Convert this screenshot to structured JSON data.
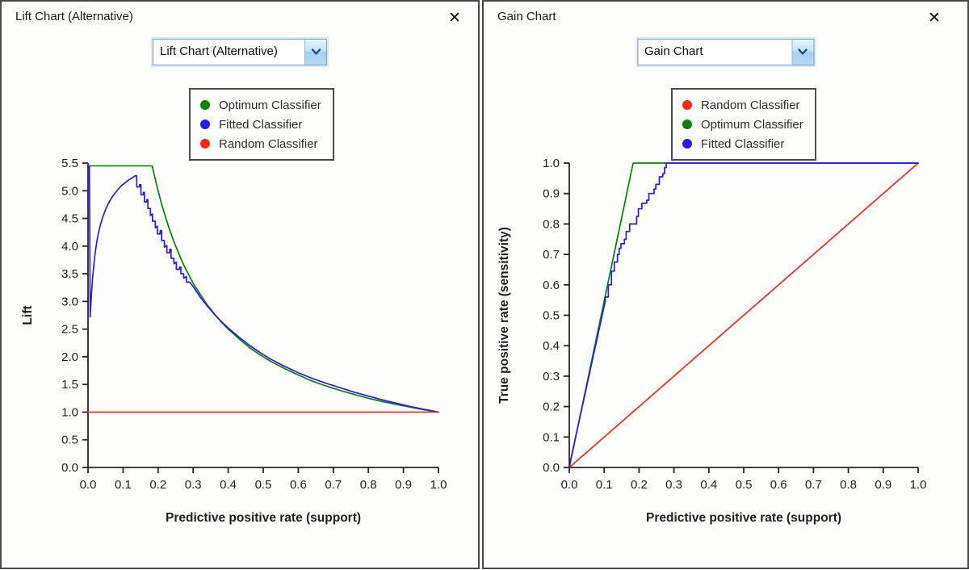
{
  "icons": {
    "close": "✕",
    "dropdown_arrow": "chevron-down"
  },
  "colors": {
    "optimum": "#038203",
    "fitted": "#2d1ae8",
    "random": "#f8271b",
    "window_border": "#4a4a4a",
    "combo_border": "#7da0c8",
    "combo_arrow": "#1e4e79"
  },
  "windows": [
    {
      "id": "lift",
      "title": "Lift Chart (Alternative)",
      "dropdown": {
        "value": "Lift Chart (Alternative)"
      },
      "legend": [
        {
          "label": "Optimum Classifier",
          "color": "#038203"
        },
        {
          "label": "Fitted Classifier",
          "color": "#2d1ae8"
        },
        {
          "label": "Random Classifier",
          "color": "#f8271b"
        }
      ]
    },
    {
      "id": "gain",
      "title": "Gain Chart",
      "dropdown": {
        "value": "Gain Chart"
      },
      "legend": [
        {
          "label": "Random Classifier",
          "color": "#f8271b"
        },
        {
          "label": "Optimum Classifier",
          "color": "#038203"
        },
        {
          "label": "Fitted Classifier",
          "color": "#2d1ae8"
        }
      ]
    }
  ],
  "chart_data": [
    {
      "type": "line",
      "title": "",
      "xlabel": "Predictive positive rate (support)",
      "ylabel": "Lift",
      "xlim": [
        0.0,
        1.0
      ],
      "ylim": [
        0.0,
        5.5
      ],
      "xticks": [
        "0.0",
        "0.1",
        "0.2",
        "0.3",
        "0.4",
        "0.5",
        "0.6",
        "0.7",
        "0.8",
        "0.9",
        "1.0"
      ],
      "yticks": [
        "0.0",
        "0.5",
        "1.0",
        "1.5",
        "2.0",
        "2.5",
        "3.0",
        "3.5",
        "4.0",
        "4.5",
        "5.0",
        "5.5"
      ],
      "grid": false,
      "legend_position": "top",
      "series": [
        {
          "name": "Optimum Classifier",
          "color": "#038203",
          "points": [
            [
              0.004,
              5.45
            ],
            [
              0.183,
              5.45
            ],
            [
              0.19,
              5.26
            ],
            [
              0.2,
              5.0
            ],
            [
              0.21,
              4.76
            ],
            [
              0.22,
              4.55
            ],
            [
              0.23,
              4.35
            ],
            [
              0.24,
              4.17
            ],
            [
              0.25,
              4.0
            ],
            [
              0.26,
              3.85
            ],
            [
              0.27,
              3.7
            ],
            [
              0.28,
              3.57
            ],
            [
              0.29,
              3.45
            ],
            [
              0.3,
              3.33
            ],
            [
              0.32,
              3.13
            ],
            [
              0.34,
              2.94
            ],
            [
              0.36,
              2.78
            ],
            [
              0.38,
              2.63
            ],
            [
              0.4,
              2.5
            ],
            [
              0.43,
              2.33
            ],
            [
              0.46,
              2.17
            ],
            [
              0.49,
              2.04
            ],
            [
              0.52,
              1.92
            ],
            [
              0.56,
              1.79
            ],
            [
              0.6,
              1.67
            ],
            [
              0.64,
              1.56
            ],
            [
              0.68,
              1.47
            ],
            [
              0.72,
              1.39
            ],
            [
              0.76,
              1.32
            ],
            [
              0.8,
              1.25
            ],
            [
              0.84,
              1.19
            ],
            [
              0.88,
              1.14
            ],
            [
              0.92,
              1.09
            ],
            [
              0.96,
              1.04
            ],
            [
              1.0,
              1.0
            ]
          ]
        },
        {
          "name": "Fitted Classifier",
          "color": "#2d1ae8",
          "points": [
            [
              0.004,
              5.45
            ],
            [
              0.0055,
              3.6
            ],
            [
              0.006,
              2.72
            ],
            [
              0.008,
              2.95
            ],
            [
              0.01,
              3.15
            ],
            [
              0.013,
              3.42
            ],
            [
              0.016,
              3.62
            ],
            [
              0.02,
              3.86
            ],
            [
              0.025,
              4.08
            ],
            [
              0.03,
              4.24
            ],
            [
              0.036,
              4.4
            ],
            [
              0.042,
              4.52
            ],
            [
              0.05,
              4.66
            ],
            [
              0.058,
              4.77
            ],
            [
              0.066,
              4.86
            ],
            [
              0.075,
              4.94
            ],
            [
              0.085,
              5.02
            ],
            [
              0.095,
              5.09
            ],
            [
              0.105,
              5.14
            ],
            [
              0.115,
              5.19
            ],
            [
              0.125,
              5.23
            ],
            [
              0.135,
              5.27
            ],
            [
              0.139,
              5.27
            ],
            [
              0.139,
              5.07
            ],
            [
              0.147,
              5.07
            ],
            [
              0.147,
              5.11
            ],
            [
              0.151,
              5.11
            ],
            [
              0.151,
              4.93
            ],
            [
              0.158,
              4.93
            ],
            [
              0.158,
              4.97
            ],
            [
              0.161,
              4.97
            ],
            [
              0.161,
              4.8
            ],
            [
              0.168,
              4.8
            ],
            [
              0.168,
              4.84
            ],
            [
              0.171,
              4.84
            ],
            [
              0.171,
              4.68
            ],
            [
              0.178,
              4.68
            ],
            [
              0.178,
              4.55
            ],
            [
              0.184,
              4.58
            ],
            [
              0.184,
              4.45
            ],
            [
              0.192,
              4.45
            ],
            [
              0.192,
              4.33
            ],
            [
              0.198,
              4.36
            ],
            [
              0.198,
              4.22
            ],
            [
              0.206,
              4.22
            ],
            [
              0.206,
              4.28
            ],
            [
              0.21,
              4.28
            ],
            [
              0.21,
              4.1
            ],
            [
              0.218,
              4.1
            ],
            [
              0.218,
              3.98
            ],
            [
              0.225,
              4.01
            ],
            [
              0.225,
              3.88
            ],
            [
              0.233,
              3.88
            ],
            [
              0.233,
              3.94
            ],
            [
              0.237,
              3.94
            ],
            [
              0.237,
              3.78
            ],
            [
              0.245,
              3.78
            ],
            [
              0.245,
              3.68
            ],
            [
              0.252,
              3.71
            ],
            [
              0.252,
              3.58
            ],
            [
              0.261,
              3.58
            ],
            [
              0.261,
              3.62
            ],
            [
              0.265,
              3.62
            ],
            [
              0.265,
              3.5
            ],
            [
              0.273,
              3.5
            ],
            [
              0.273,
              3.42
            ],
            [
              0.281,
              3.45
            ],
            [
              0.281,
              3.35
            ],
            [
              0.29,
              3.35
            ],
            [
              0.3,
              3.27
            ],
            [
              0.32,
              3.08
            ],
            [
              0.34,
              2.92
            ],
            [
              0.36,
              2.77
            ],
            [
              0.38,
              2.64
            ],
            [
              0.4,
              2.52
            ],
            [
              0.43,
              2.36
            ],
            [
              0.46,
              2.21
            ],
            [
              0.49,
              2.08
            ],
            [
              0.52,
              1.96
            ],
            [
              0.56,
              1.83
            ],
            [
              0.6,
              1.71
            ],
            [
              0.64,
              1.61
            ],
            [
              0.68,
              1.52
            ],
            [
              0.72,
              1.44
            ],
            [
              0.76,
              1.36
            ],
            [
              0.8,
              1.29
            ],
            [
              0.84,
              1.22
            ],
            [
              0.88,
              1.16
            ],
            [
              0.92,
              1.1
            ],
            [
              0.96,
              1.05
            ],
            [
              1.0,
              1.0
            ]
          ]
        },
        {
          "name": "Random Classifier",
          "color": "#f8271b",
          "points": [
            [
              0.0,
              1.0
            ],
            [
              1.0,
              1.0
            ]
          ]
        }
      ]
    },
    {
      "type": "line",
      "title": "",
      "xlabel": "Predictive positive rate (support)",
      "ylabel": "True positive rate (sensitivity)",
      "xlim": [
        0.0,
        1.0
      ],
      "ylim": [
        0.0,
        1.0
      ],
      "xticks": [
        "0.0",
        "0.1",
        "0.2",
        "0.3",
        "0.4",
        "0.5",
        "0.6",
        "0.7",
        "0.8",
        "0.9",
        "1.0"
      ],
      "yticks": [
        "0.0",
        "0.1",
        "0.2",
        "0.3",
        "0.4",
        "0.5",
        "0.6",
        "0.7",
        "0.8",
        "0.9",
        "1.0"
      ],
      "grid": false,
      "legend_position": "top",
      "series": [
        {
          "name": "Random Classifier",
          "color": "#f8271b",
          "points": [
            [
              0.0,
              0.0
            ],
            [
              1.0,
              1.0
            ]
          ]
        },
        {
          "name": "Optimum Classifier",
          "color": "#038203",
          "points": [
            [
              0.0,
              0.0
            ],
            [
              0.183,
              1.0
            ],
            [
              1.0,
              1.0
            ]
          ]
        },
        {
          "name": "Fitted Classifier",
          "color": "#2d1ae8",
          "points": [
            [
              0.0,
              0.0
            ],
            [
              0.005,
              0.03
            ],
            [
              0.02,
              0.11
            ],
            [
              0.04,
              0.215
            ],
            [
              0.06,
              0.32
            ],
            [
              0.08,
              0.425
            ],
            [
              0.1,
              0.53
            ],
            [
              0.103,
              0.545
            ],
            [
              0.103,
              0.56
            ],
            [
              0.112,
              0.56
            ],
            [
              0.112,
              0.6
            ],
            [
              0.121,
              0.6
            ],
            [
              0.121,
              0.645
            ],
            [
              0.129,
              0.645
            ],
            [
              0.129,
              0.675
            ],
            [
              0.138,
              0.675
            ],
            [
              0.138,
              0.7
            ],
            [
              0.143,
              0.7
            ],
            [
              0.143,
              0.72
            ],
            [
              0.148,
              0.72
            ],
            [
              0.148,
              0.735
            ],
            [
              0.158,
              0.735
            ],
            [
              0.158,
              0.75
            ],
            [
              0.163,
              0.75
            ],
            [
              0.163,
              0.775
            ],
            [
              0.173,
              0.775
            ],
            [
              0.173,
              0.8
            ],
            [
              0.193,
              0.8
            ],
            [
              0.193,
              0.825
            ],
            [
              0.198,
              0.825
            ],
            [
              0.198,
              0.85
            ],
            [
              0.208,
              0.85
            ],
            [
              0.208,
              0.868
            ],
            [
              0.222,
              0.868
            ],
            [
              0.222,
              0.878
            ],
            [
              0.228,
              0.878
            ],
            [
              0.228,
              0.9
            ],
            [
              0.243,
              0.9
            ],
            [
              0.243,
              0.915
            ],
            [
              0.248,
              0.915
            ],
            [
              0.248,
              0.93
            ],
            [
              0.258,
              0.93
            ],
            [
              0.258,
              0.955
            ],
            [
              0.268,
              0.955
            ],
            [
              0.268,
              0.965
            ],
            [
              0.273,
              0.965
            ],
            [
              0.273,
              0.985
            ],
            [
              0.278,
              0.985
            ],
            [
              0.278,
              1.0
            ],
            [
              1.0,
              1.0
            ]
          ]
        }
      ]
    }
  ]
}
